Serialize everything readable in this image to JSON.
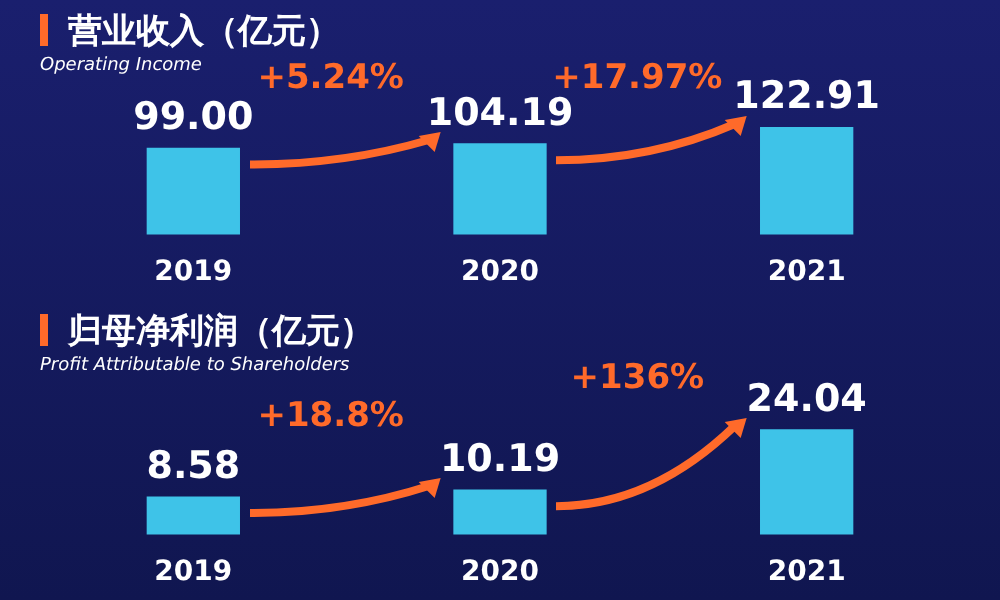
{
  "chart_data": [
    {
      "type": "bar",
      "title": "营业收入（亿元）",
      "subtitle": "Operating Income",
      "categories": [
        "2019",
        "2020",
        "2021"
      ],
      "values": [
        99.0,
        104.19,
        122.91
      ],
      "value_labels": [
        "99.00",
        "104.19",
        "122.91"
      ],
      "color": "#3ec3e8",
      "grid": false,
      "legend": false,
      "tick_labels": "x",
      "annotations": [
        "+5.24%",
        "+17.97%"
      ]
    },
    {
      "type": "bar",
      "title": "归母净利润（亿元）",
      "subtitle": "Profit Attributable to Shareholders",
      "categories": [
        "2019",
        "2020",
        "2021"
      ],
      "values": [
        8.58,
        10.19,
        24.04
      ],
      "value_labels": [
        "8.58",
        "10.19",
        "24.04"
      ],
      "color": "#3ec3e8",
      "grid": false,
      "legend": false,
      "tick_labels": "x",
      "annotations": [
        "+18.8%",
        "+136%"
      ]
    }
  ]
}
